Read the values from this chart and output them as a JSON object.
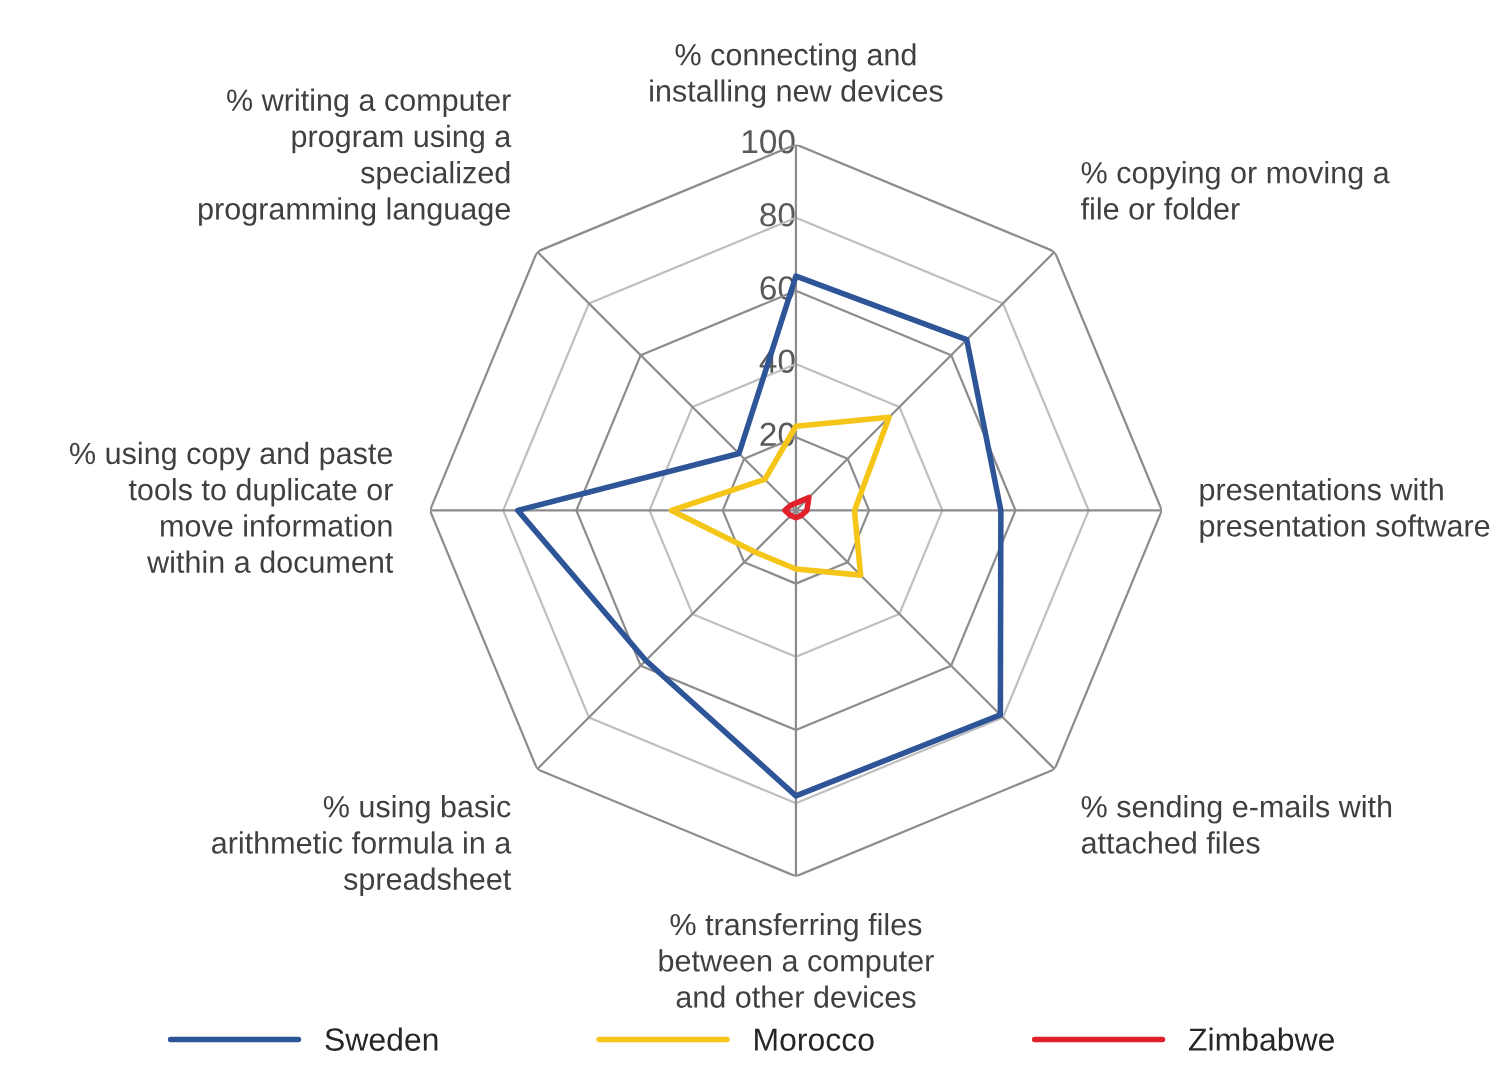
{
  "chart_data": {
    "type": "radar",
    "categories": [
      "% connecting and\ninstalling new devices",
      "% copying or moving a\nfile or folder",
      "presentations with\npresentation software",
      "% sending e-mails with\nattached files",
      "% transferring files\nbetween a computer\nand other devices",
      "% using basic\narithmetic formula in a\nspreadsheet",
      "% using copy and paste\ntools to duplicate or\nmove information\nwithin a document",
      "% writing a computer\nprogram using a\nspecialized\nprogramming language"
    ],
    "series": [
      {
        "name": "Sweden",
        "color": "#2e5597",
        "values": [
          64,
          66,
          56,
          79,
          78,
          58,
          76,
          22
        ]
      },
      {
        "name": "Morocco",
        "color": "#f5c518",
        "values": [
          23,
          36,
          16,
          25,
          16,
          16,
          34,
          12
        ]
      },
      {
        "name": "Zimbabwe",
        "color": "#e0202a",
        "values": [
          2,
          5,
          3,
          2,
          2,
          2,
          3,
          2
        ]
      }
    ],
    "ylim": [
      0,
      100
    ],
    "yticks": [
      20,
      40,
      60,
      80,
      100
    ],
    "legend": "bottom",
    "grid": true
  }
}
